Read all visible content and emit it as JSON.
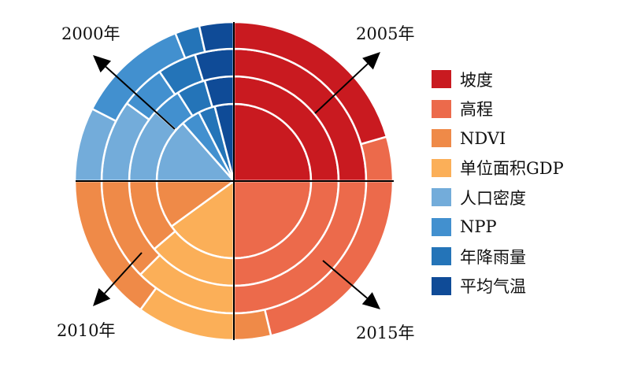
{
  "chart_data": {
    "type": "radial-stacked",
    "rings": [
      "2000年",
      "2005年",
      "2010年",
      "2015年"
    ],
    "factors": [
      {
        "name": "坡度",
        "color": "#C91A20"
      },
      {
        "name": "高程",
        "color": "#EC6A4B"
      },
      {
        "name": "NDVI",
        "color": "#EF8A48"
      },
      {
        "name": "单位面积GDP",
        "color": "#FBAF58"
      },
      {
        "name": "人口密度",
        "color": "#73ACDA"
      },
      {
        "name": "NPP",
        "color": "#4290CF"
      },
      {
        "name": "年降雨量",
        "color": "#2474B8"
      },
      {
        "name": "平均气温",
        "color": "#0F4B97"
      }
    ],
    "quadrants": [
      {
        "label": "2000年",
        "position": "top-left",
        "segments": [
          {
            "factor": "人口密度",
            "ring_shares": [
              0.54,
              0.46,
              0.4,
              0.3
            ]
          },
          {
            "factor": "NPP",
            "ring_shares": [
              0.16,
              0.18,
              0.22,
              0.46
            ]
          },
          {
            "factor": "年降雨量",
            "ring_shares": [
              0.14,
              0.18,
              0.19,
              0.1
            ]
          },
          {
            "factor": "平均气温",
            "ring_shares": [
              0.16,
              0.18,
              0.19,
              0.14
            ]
          }
        ]
      },
      {
        "label": "2005年",
        "position": "top-right",
        "segments": [
          {
            "factor": "坡度",
            "ring_shares": [
              1,
              1,
              1,
              0.82
            ]
          },
          {
            "factor": "高程",
            "ring_shares": [
              0,
              0,
              0,
              0.18
            ]
          }
        ]
      },
      {
        "label": "2010年",
        "position": "bottom-left",
        "segments": [
          {
            "factor": "单位面积GDP",
            "ring_shares": [
              0.6,
              0.55,
              0.5,
              0.4
            ]
          },
          {
            "factor": "NDVI",
            "ring_shares": [
              0.4,
              0.45,
              0.5,
              0.6
            ]
          }
        ]
      },
      {
        "label": "2015年",
        "position": "bottom-right",
        "segments": [
          {
            "factor": "高程",
            "ring_shares": [
              1,
              1,
              1,
              0.85
            ]
          },
          {
            "factor": "NDVI",
            "ring_shares": [
              0,
              0,
              0,
              0.15
            ]
          }
        ]
      }
    ],
    "legend_position": "right"
  }
}
